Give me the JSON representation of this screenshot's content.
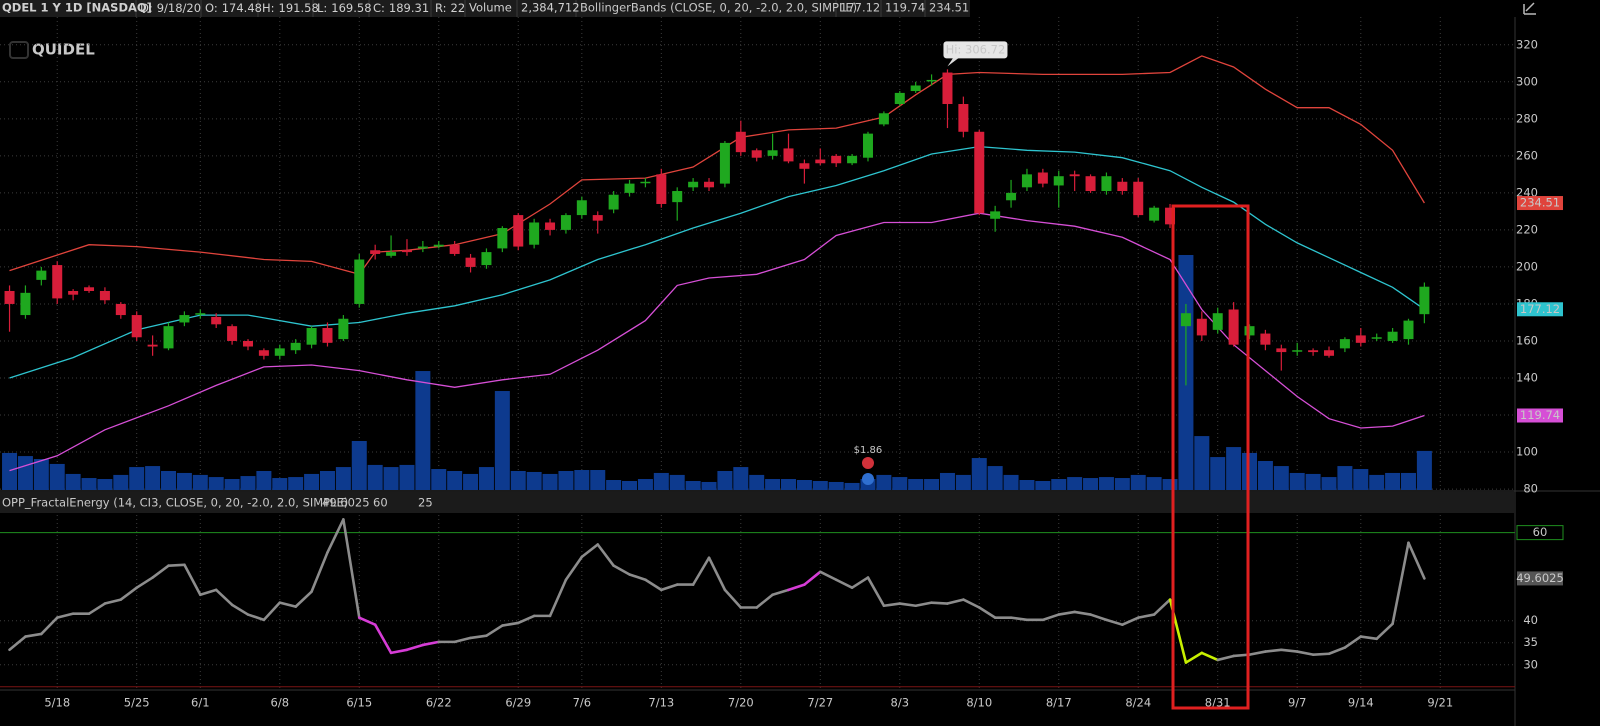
{
  "header": {
    "symbol": "QDEL 1 Y 1D [NASDAQ]",
    "date_key": "D:",
    "date": "9/18/20",
    "open_key": "O:",
    "high_key": "H:",
    "low_key": "L:",
    "close_key": "C:",
    "r_key": "R:",
    "r": 22,
    "volume_text": "2,384,712",
    "study": "BollingerBands (CLOSE, 0, 20, -2.0, 2.0, SIMPLE)"
  },
  "chart_data": [
    {
      "type": "candlestick",
      "watermark": "QUIDEL",
      "x": [
        0,
        1,
        2,
        3,
        4,
        5,
        6,
        7,
        8,
        9,
        10,
        11,
        12,
        13,
        14,
        15,
        16,
        17,
        18,
        19,
        20,
        21,
        22,
        23,
        24,
        25,
        26,
        27,
        28,
        29,
        30,
        31,
        32,
        33,
        34,
        35,
        36,
        37,
        38,
        39,
        40,
        41,
        42,
        43,
        44,
        45,
        46,
        47,
        48,
        49,
        50,
        51,
        52,
        53,
        54,
        55,
        56,
        57,
        58,
        59,
        60,
        61,
        62,
        63,
        64,
        65,
        66,
        67,
        68,
        69,
        70,
        71,
        72,
        73,
        74,
        75,
        76,
        77,
        78,
        79,
        80,
        81,
        82,
        83,
        84,
        85,
        86,
        87,
        88,
        89
      ],
      "open": [
        187,
        174,
        193,
        201,
        187,
        189,
        187,
        180,
        174,
        158,
        156,
        170,
        175,
        173,
        168,
        160,
        155,
        152,
        155,
        158,
        167,
        161,
        180,
        209,
        206,
        209,
        210,
        211,
        212,
        205,
        201,
        210,
        228,
        212,
        224,
        220,
        228,
        228,
        231,
        240,
        246,
        250,
        235,
        243,
        246,
        245,
        273,
        263,
        260,
        264,
        256,
        258,
        260,
        256,
        259,
        277,
        288,
        295,
        301,
        305,
        288,
        273,
        226,
        236,
        243,
        251,
        244,
        250,
        249,
        241,
        246,
        246,
        225,
        232,
        168,
        172,
        166,
        177,
        163,
        164,
        156,
        155,
        155,
        155,
        156,
        163,
        162,
        160,
        161,
        174.48
      ],
      "high": [
        190,
        190,
        200,
        203,
        188,
        190,
        189,
        181,
        176,
        163,
        170,
        176,
        177,
        175,
        169,
        161,
        156,
        158,
        161,
        168,
        170,
        174,
        207,
        212,
        217,
        215,
        214,
        214,
        214,
        207,
        210,
        222,
        229,
        226,
        226,
        229,
        238,
        230,
        241,
        247,
        248,
        253,
        243,
        248,
        248,
        268,
        279,
        264,
        272,
        272,
        258,
        264,
        261,
        261,
        273,
        284,
        295,
        300,
        304,
        306.72,
        292,
        274,
        233,
        247,
        253,
        253,
        252,
        252,
        250,
        251,
        248,
        248,
        233,
        234,
        180,
        176,
        178,
        181,
        169,
        166,
        158,
        159,
        156,
        157,
        162,
        167,
        164,
        167,
        172,
        191.58
      ],
      "low": [
        165,
        172,
        190,
        180,
        182,
        186,
        180,
        172,
        160,
        152,
        155,
        168,
        172,
        167,
        158,
        155,
        150,
        150,
        153,
        156,
        157,
        160,
        178,
        204,
        205,
        206,
        208,
        210,
        206,
        197,
        199,
        208,
        209,
        210,
        217,
        218,
        226,
        218,
        229,
        238,
        243,
        232,
        225,
        241,
        241,
        243,
        260,
        257,
        258,
        256,
        245,
        255,
        254,
        255,
        257,
        276,
        287,
        294,
        298,
        275,
        270,
        228,
        219,
        232,
        241,
        243,
        232,
        241,
        240,
        239,
        239,
        227,
        224,
        221,
        136,
        160,
        164,
        157,
        161,
        155,
        144,
        152,
        152,
        151,
        154,
        157,
        160,
        159,
        158,
        169.58
      ],
      "close": [
        180,
        186,
        198,
        183,
        185,
        187,
        182,
        174,
        162,
        157,
        168,
        174,
        175,
        169,
        160,
        157,
        152,
        156,
        159,
        167,
        159,
        172,
        204,
        207,
        208,
        208,
        211,
        212,
        207,
        200,
        208,
        221,
        211,
        224,
        220,
        228,
        236,
        225,
        239,
        245,
        246,
        234,
        241,
        246,
        243,
        267,
        262,
        259,
        263,
        257,
        253,
        256,
        256,
        260,
        272,
        283,
        294,
        298,
        301,
        288,
        273,
        229,
        230,
        240,
        250,
        245,
        249,
        249,
        241,
        249,
        241,
        228,
        232,
        223,
        175,
        163,
        175,
        158,
        168,
        158,
        154,
        155,
        154,
        152,
        161,
        159,
        162,
        165,
        171,
        189.31
      ],
      "up_color": "#1fa81f",
      "down_color": "#d81e3a",
      "ylim": [
        79.5,
        335
      ],
      "yticks": [
        80,
        100,
        120,
        140,
        160,
        180,
        200,
        220,
        240,
        260,
        280,
        300,
        320
      ],
      "grid": true,
      "volume": {
        "name": "Volume",
        "color": "#0d3a8e",
        "values": [
          2260000,
          2070000,
          1890000,
          1590000,
          980000,
          730000,
          670000,
          920000,
          1400000,
          1460000,
          1160000,
          1040000,
          920000,
          790000,
          670000,
          850000,
          1160000,
          730000,
          790000,
          980000,
          1160000,
          1400000,
          2990000,
          1530000,
          1400000,
          1530000,
          7260000,
          1280000,
          1160000,
          980000,
          1400000,
          6040000,
          1160000,
          1100000,
          980000,
          1160000,
          1220000,
          1220000,
          610000,
          550000,
          670000,
          1040000,
          920000,
          550000,
          490000,
          1160000,
          1400000,
          920000,
          670000,
          670000,
          610000,
          550000,
          490000,
          430000,
          670000,
          920000,
          790000,
          670000,
          670000,
          1040000,
          920000,
          1950000,
          1460000,
          920000,
          610000,
          550000,
          670000,
          790000,
          730000,
          790000,
          730000,
          920000,
          790000,
          670000,
          14340000,
          3290000,
          2010000,
          2620000,
          2260000,
          1770000,
          1460000,
          1040000,
          980000,
          790000,
          1460000,
          1280000,
          920000,
          1040000,
          1040000,
          2384712
        ]
      },
      "series": [
        {
          "color": "#e0443c",
          "x": [
            0,
            5,
            8,
            12,
            16,
            19,
            22,
            23,
            25,
            28,
            31,
            34,
            36,
            40,
            43,
            46,
            49,
            52,
            55,
            57,
            59,
            61,
            65,
            70,
            73,
            75,
            77,
            79,
            81,
            83,
            85,
            87,
            89
          ],
          "values": [
            198,
            212,
            211,
            208,
            204,
            203,
            196,
            208,
            209,
            212,
            218,
            234,
            247,
            248,
            254,
            270,
            274,
            275,
            281,
            293,
            304,
            305,
            304,
            304,
            305,
            314,
            308,
            296,
            286,
            286,
            277,
            263,
            234.51
          ]
        },
        {
          "color": "#2ec4cf",
          "x": [
            0,
            4,
            8,
            12,
            15,
            19,
            22,
            25,
            28,
            31,
            34,
            37,
            40,
            43,
            46,
            49,
            52,
            55,
            58,
            61,
            64,
            67,
            70,
            73,
            75,
            77,
            79,
            81,
            83,
            85,
            87,
            89
          ],
          "values": [
            140,
            151,
            166,
            174,
            174,
            168,
            170,
            175,
            179,
            185,
            193,
            204,
            212,
            221,
            229,
            238,
            244,
            252,
            261,
            265,
            263,
            262,
            259,
            252,
            243,
            235,
            223,
            213,
            205,
            197,
            189,
            177.12
          ]
        },
        {
          "color": "#d64fd6",
          "x": [
            0,
            3,
            6,
            10,
            13,
            16,
            19,
            22,
            25,
            28,
            31,
            34,
            37,
            40,
            42,
            44,
            47,
            50,
            52,
            55,
            58,
            61,
            64,
            67,
            70,
            73,
            75,
            77,
            79,
            81,
            83,
            85,
            87,
            89
          ],
          "values": [
            90,
            98,
            112,
            125,
            136,
            146,
            147,
            144,
            139,
            135,
            139,
            142,
            155,
            171,
            190,
            194,
            196,
            204,
            217,
            224,
            224,
            229,
            225,
            222,
            216,
            204,
            177,
            158,
            144,
            130,
            118,
            113,
            114,
            119.74
          ]
        }
      ],
      "annotations": [
        {
          "x": 59,
          "text": "Hi: 306.72"
        }
      ],
      "events": [
        {
          "x": 54,
          "label": "$1.86",
          "color": "#2fbf2f"
        }
      ]
    },
    {
      "type": "line",
      "title": "OPP_FractalEnergy (14, CI3, CLOSE, 0, 20, -2.0, 2.0, SIMPLE)",
      "values": [
        33.4,
        36.4,
        37,
        40.7,
        41.6,
        41.6,
        43.9,
        44.8,
        47.5,
        49.8,
        52.5,
        52.7,
        45.9,
        47,
        43.6,
        41.4,
        40.2,
        44.1,
        43.2,
        46.6,
        55.5,
        63,
        40.7,
        39.1,
        32.7,
        33.4,
        34.5,
        35.2,
        35.2,
        36.1,
        36.6,
        38.9,
        39.5,
        41.1,
        41.1,
        49.3,
        54.5,
        57.3,
        52.5,
        50.5,
        49.3,
        47,
        48.2,
        48.2,
        54.3,
        47,
        43,
        43,
        45.9,
        47,
        48.2,
        51.1,
        49.3,
        47.5,
        49.8,
        43.4,
        43.9,
        43.4,
        44.1,
        43.9,
        44.8,
        43,
        40.7,
        40.7,
        40.2,
        40.2,
        41.4,
        42,
        41.4,
        40.2,
        39.1,
        40.7,
        41.4,
        44.8,
        30.5,
        32.7,
        31.1,
        32,
        32.3,
        33,
        33.4,
        33,
        32.3,
        32.5,
        33.9,
        36.4,
        35.9,
        39.3,
        57.7,
        49.6025
      ],
      "colors": [
        "#8c8c8c",
        "#8c8c8c",
        "#8c8c8c",
        "#8c8c8c",
        "#8c8c8c",
        "#8c8c8c",
        "#8c8c8c",
        "#8c8c8c",
        "#8c8c8c",
        "#8c8c8c",
        "#8c8c8c",
        "#8c8c8c",
        "#8c8c8c",
        "#8c8c8c",
        "#8c8c8c",
        "#8c8c8c",
        "#8c8c8c",
        "#8c8c8c",
        "#8c8c8c",
        "#8c8c8c",
        "#8c8c8c",
        "#8c8c8c",
        "#8c8c8c",
        "#d63cd6",
        "#d63cd6",
        "#d63cd6",
        "#d63cd6",
        "#d63cd6",
        "#8c8c8c",
        "#8c8c8c",
        "#8c8c8c",
        "#8c8c8c",
        "#8c8c8c",
        "#8c8c8c",
        "#8c8c8c",
        "#8c8c8c",
        "#8c8c8c",
        "#8c8c8c",
        "#8c8c8c",
        "#8c8c8c",
        "#8c8c8c",
        "#8c8c8c",
        "#8c8c8c",
        "#8c8c8c",
        "#8c8c8c",
        "#8c8c8c",
        "#8c8c8c",
        "#8c8c8c",
        "#8c8c8c",
        "#8c8c8c",
        "#d63cd6",
        "#d63cd6",
        "#8c8c8c",
        "#8c8c8c",
        "#8c8c8c",
        "#8c8c8c",
        "#8c8c8c",
        "#8c8c8c",
        "#8c8c8c",
        "#8c8c8c",
        "#8c8c8c",
        "#8c8c8c",
        "#8c8c8c",
        "#8c8c8c",
        "#8c8c8c",
        "#8c8c8c",
        "#8c8c8c",
        "#8c8c8c",
        "#8c8c8c",
        "#8c8c8c",
        "#8c8c8c",
        "#8c8c8c",
        "#8c8c8c",
        "#8c8c8c",
        "#c8f000",
        "#c8f000",
        "#c8f000",
        "#8c8c8c",
        "#8c8c8c",
        "#8c8c8c",
        "#8c8c8c",
        "#8c8c8c",
        "#8c8c8c",
        "#8c8c8c",
        "#8c8c8c",
        "#8c8c8c",
        "#8c8c8c",
        "#8c8c8c",
        "#8c8c8c",
        "#8c8c8c"
      ],
      "ylim": [
        24.5,
        64
      ],
      "yticks": [
        30,
        35,
        40
      ],
      "levels": [
        {
          "value": 60,
          "color": "#1f8f1f"
        },
        {
          "value": 25,
          "color": "#7a1414"
        }
      ],
      "grid": true,
      "xlim": [
        -0.6,
        94.7
      ],
      "xticks": [
        {
          "value": 3,
          "label": "5/18"
        },
        {
          "value": 8,
          "label": "5/25"
        },
        {
          "value": 12,
          "label": "6/1"
        },
        {
          "value": 17,
          "label": "6/8"
        },
        {
          "value": 22,
          "label": "6/15"
        },
        {
          "value": 27,
          "label": "6/22"
        },
        {
          "value": 32,
          "label": "6/29"
        },
        {
          "value": 36,
          "label": "7/6"
        },
        {
          "value": 41,
          "label": "7/13"
        },
        {
          "value": 46,
          "label": "7/20"
        },
        {
          "value": 51,
          "label": "7/27"
        },
        {
          "value": 56,
          "label": "8/3"
        },
        {
          "value": 61,
          "label": "8/10"
        },
        {
          "value": 66,
          "label": "8/17"
        },
        {
          "value": 71,
          "label": "8/24"
        },
        {
          "value": 76,
          "label": "8/31"
        },
        {
          "value": 81,
          "label": "9/7"
        },
        {
          "value": 85,
          "label": "9/14"
        },
        {
          "value": 90,
          "label": "9/21"
        }
      ]
    }
  ]
}
